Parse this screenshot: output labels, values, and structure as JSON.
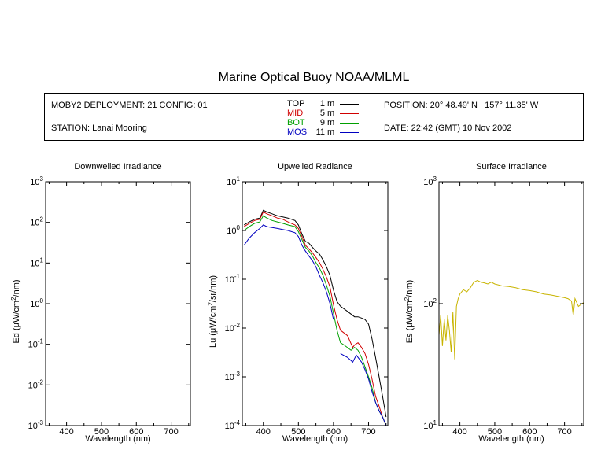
{
  "title": "Marine Optical Buoy NOAA/MLML",
  "info": {
    "deployment": "MOBY2 DEPLOYMENT: 21 CONFIG: 01",
    "station": "STATION: Lanai Mooring",
    "position": "POSITION: 20° 48.49' N   157° 11.35' W",
    "date": "DATE: 22:42 (GMT) 10 Nov 2002",
    "legend": [
      {
        "label": "TOP",
        "depth": "1",
        "unit": "m",
        "color": "#000000"
      },
      {
        "label": "MID",
        "depth": "5",
        "unit": "m",
        "color": "#d00000"
      },
      {
        "label": "BOT",
        "depth": "9",
        "unit": "m",
        "color": "#00a000"
      },
      {
        "label": "MOS",
        "depth": "11",
        "unit": "m",
        "color": "#0000c0"
      }
    ]
  },
  "chart_data": [
    {
      "type": "line",
      "title": "Downwelled Irradiance",
      "xlabel": "Wavelength (nm)",
      "ylabel_prefix": "Ed  (",
      "ylabel_unit": "μW/cm",
      "ylabel_sup": "2",
      "ylabel_suffix": "/nm)",
      "log_y": true,
      "xlim": [
        340,
        755
      ],
      "ylim": [
        0.001,
        1000
      ],
      "xticks": [
        400,
        500,
        600,
        700
      ],
      "yticks": [
        {
          "v": 0.001,
          "base": "10",
          "exp": "-3"
        },
        {
          "v": 0.01,
          "base": "10",
          "exp": "-2"
        },
        {
          "v": 0.1,
          "base": "10",
          "exp": "-1"
        },
        {
          "v": 1,
          "base": "10",
          "exp": "0"
        },
        {
          "v": 10,
          "base": "10",
          "exp": "1"
        },
        {
          "v": 100,
          "base": "10",
          "exp": "2"
        },
        {
          "v": 1000,
          "base": "10",
          "exp": "3"
        }
      ],
      "series": []
    },
    {
      "type": "line",
      "title": "Upwelled Radiance",
      "xlabel": "Wavelength (nm)",
      "ylabel_prefix": "Lu  (",
      "ylabel_unit": "μW/cm",
      "ylabel_sup": "2",
      "ylabel_suffix": "/sr/nm)",
      "log_y": true,
      "xlim": [
        340,
        755
      ],
      "ylim": [
        0.0001,
        10
      ],
      "xticks": [
        400,
        500,
        600,
        700
      ],
      "yticks": [
        {
          "v": 0.0001,
          "base": "10",
          "exp": "-4"
        },
        {
          "v": 0.001,
          "base": "10",
          "exp": "-3"
        },
        {
          "v": 0.01,
          "base": "10",
          "exp": "-2"
        },
        {
          "v": 0.1,
          "base": "10",
          "exp": "-1"
        },
        {
          "v": 1,
          "base": "10",
          "exp": "0"
        },
        {
          "v": 10,
          "base": "10",
          "exp": "1"
        }
      ],
      "series": [
        {
          "name": "TOP",
          "color": "#000000",
          "x": [
            345,
            360,
            375,
            390,
            400,
            410,
            425,
            440,
            455,
            470,
            490,
            500,
            510,
            520,
            530,
            540,
            550,
            560,
            570,
            580,
            590,
            600,
            610,
            620,
            640,
            660,
            670,
            680,
            690,
            700,
            710,
            720,
            730,
            740,
            750
          ],
          "y": [
            1.3,
            1.5,
            1.7,
            1.8,
            2.6,
            2.4,
            2.2,
            2.0,
            1.9,
            1.8,
            1.6,
            1.3,
            0.85,
            0.6,
            0.55,
            0.45,
            0.38,
            0.33,
            0.25,
            0.18,
            0.12,
            0.06,
            0.035,
            0.028,
            0.022,
            0.017,
            0.017,
            0.016,
            0.015,
            0.012,
            0.006,
            0.0025,
            0.001,
            0.0004,
            0.00015
          ]
        },
        {
          "name": "MID",
          "color": "#d00000",
          "x": [
            345,
            360,
            375,
            390,
            400,
            410,
            425,
            440,
            455,
            470,
            490,
            500,
            510,
            520,
            530,
            540,
            550,
            560,
            570,
            580,
            590,
            600,
            610,
            620,
            640,
            655,
            660,
            670,
            680,
            690,
            700,
            710,
            720,
            730,
            740,
            750
          ],
          "y": [
            1.2,
            1.4,
            1.6,
            1.7,
            2.4,
            2.2,
            2.0,
            1.8,
            1.7,
            1.5,
            1.3,
            1.1,
            0.75,
            0.5,
            0.42,
            0.35,
            0.28,
            0.22,
            0.16,
            0.11,
            0.07,
            0.03,
            0.015,
            0.009,
            0.007,
            0.004,
            0.0045,
            0.005,
            0.004,
            0.003,
            0.0018,
            0.0009,
            0.0004,
            0.00025,
            0.00015,
            0.0001
          ]
        },
        {
          "name": "BOT",
          "color": "#00a000",
          "x": [
            345,
            360,
            375,
            390,
            400,
            410,
            425,
            440,
            455,
            470,
            490,
            500,
            510,
            520,
            530,
            540,
            550,
            560,
            570,
            580,
            590,
            600,
            610,
            620,
            630,
            650,
            660,
            670,
            680,
            690,
            700,
            710,
            720,
            730,
            740,
            750
          ],
          "y": [
            1.0,
            1.2,
            1.4,
            1.5,
            2.0,
            1.8,
            1.6,
            1.5,
            1.4,
            1.3,
            1.2,
            0.95,
            0.65,
            0.45,
            0.38,
            0.3,
            0.22,
            0.17,
            0.12,
            0.075,
            0.045,
            0.02,
            0.009,
            0.005,
            0.0045,
            0.0035,
            0.004,
            0.0035,
            0.0025,
            0.0016,
            0.001,
            0.0006,
            0.0003,
            0.0002,
            0.00015,
            0.0001
          ]
        },
        {
          "name": "MOS",
          "color": "#0000c0",
          "x": [
            345,
            360,
            375,
            390,
            400,
            410,
            425,
            440,
            455,
            470,
            490,
            500,
            510,
            520,
            530,
            540,
            550,
            560,
            570,
            580,
            590,
            600
          ],
          "y": [
            0.5,
            0.7,
            0.9,
            1.1,
            1.3,
            1.2,
            1.15,
            1.1,
            1.05,
            1.0,
            0.9,
            0.75,
            0.5,
            0.38,
            0.3,
            0.24,
            0.18,
            0.12,
            0.085,
            0.055,
            0.032,
            0.015
          ]
        },
        {
          "name": "MOS",
          "color": "#0000c0",
          "x": [
            620,
            640,
            655,
            665,
            680,
            690,
            700,
            710,
            720,
            730,
            740,
            750
          ],
          "y": [
            0.003,
            0.0025,
            0.002,
            0.0028,
            0.002,
            0.0014,
            0.0009,
            0.0005,
            0.0003,
            0.0002,
            0.00015,
            0.0001
          ]
        }
      ]
    },
    {
      "type": "line",
      "title": "Surface Irradiance",
      "xlabel": "Wavelength (nm)",
      "ylabel_prefix": "Es  (",
      "ylabel_unit": "μW/cm",
      "ylabel_sup": "2",
      "ylabel_suffix": "/nm)",
      "log_y": true,
      "xlim": [
        340,
        755
      ],
      "ylim": [
        10,
        1000
      ],
      "xticks": [
        400,
        500,
        600,
        700
      ],
      "yticks": [
        {
          "v": 10,
          "base": "10",
          "exp": "1"
        },
        {
          "v": 100,
          "base": "10",
          "exp": "2"
        },
        {
          "v": 1000,
          "base": "10",
          "exp": "3"
        }
      ],
      "series": [
        {
          "name": "Es",
          "color": "#c8b400",
          "x": [
            340,
            345,
            350,
            355,
            360,
            365,
            370,
            375,
            380,
            385,
            390,
            395,
            400,
            410,
            420,
            430,
            440,
            450,
            460,
            470,
            480,
            490,
            500,
            520,
            540,
            560,
            580,
            600,
            620,
            640,
            660,
            680,
            700,
            710,
            720,
            725,
            730,
            740,
            750,
            755
          ],
          "y": [
            55,
            80,
            45,
            75,
            50,
            80,
            60,
            40,
            85,
            35,
            95,
            110,
            120,
            130,
            125,
            135,
            150,
            155,
            150,
            148,
            145,
            150,
            145,
            140,
            138,
            135,
            130,
            128,
            125,
            120,
            118,
            115,
            112,
            110,
            105,
            80,
            110,
            95,
            100,
            102
          ]
        }
      ]
    }
  ]
}
